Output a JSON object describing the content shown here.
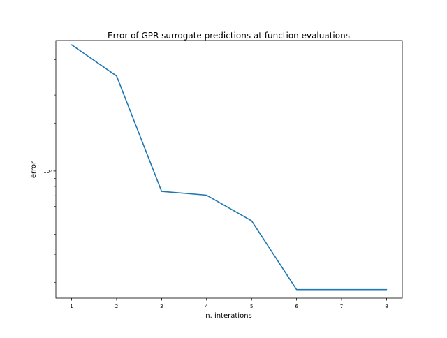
{
  "chart_data": {
    "type": "line",
    "title": "Error of GPR surrogate predictions at function evaluations",
    "xlabel": "n. interations",
    "ylabel": "error",
    "yscale": "log",
    "x": [
      1,
      2,
      3,
      4,
      5,
      6,
      7,
      8
    ],
    "xticks": [
      "1",
      "2",
      "3",
      "4",
      "5",
      "6",
      "7",
      "8"
    ],
    "yticks": [
      {
        "value": 1000,
        "label": "10³"
      }
    ],
    "series": [
      {
        "values": [
          6200,
          3950,
          745,
          705,
          487,
          180,
          180,
          180
        ],
        "color": "#1f77b4"
      }
    ],
    "xlim": [
      0.65,
      8.35
    ],
    "ylim": [
      159,
      6600
    ],
    "grid": false,
    "legend": "none"
  }
}
